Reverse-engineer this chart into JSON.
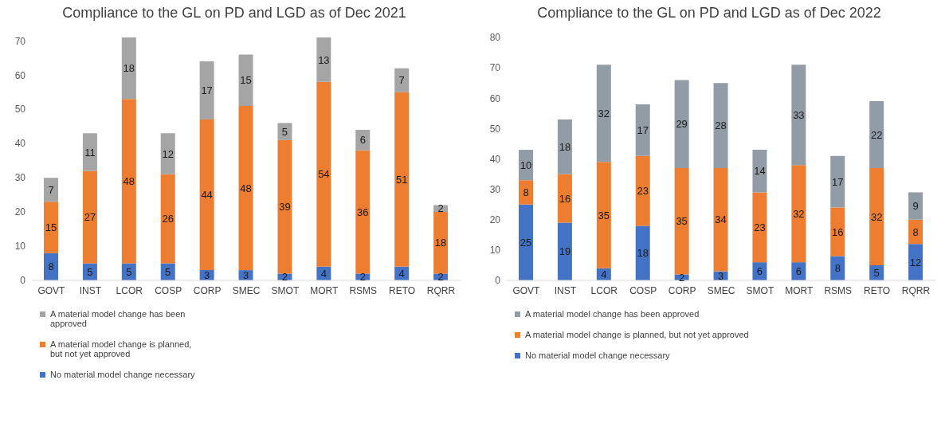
{
  "chart_data": [
    {
      "type": "bar",
      "title": "Compliance to the GL on PD and LGD as of Dec 2021",
      "categories": [
        "GOVT",
        "INST",
        "LCOR",
        "COSP",
        "CORP",
        "SMEC",
        "SMOT",
        "MORT",
        "RSMS",
        "RETO",
        "RQRR"
      ],
      "stacked": true,
      "data_labels": true,
      "grid": false,
      "legend": "bottom",
      "ylim": [
        0,
        71
      ],
      "yticks": [
        0,
        10,
        20,
        30,
        40,
        50,
        60,
        70
      ],
      "series": [
        {
          "name": "No material model change necessary",
          "color": "#4472c4",
          "values": [
            8,
            5,
            5,
            5,
            3,
            3,
            2,
            4,
            2,
            4,
            2
          ]
        },
        {
          "name": "A material model change is planned, but not yet approved",
          "color": "#ed7d31",
          "values": [
            15,
            27,
            48,
            26,
            44,
            48,
            39,
            54,
            36,
            51,
            18
          ]
        },
        {
          "name": "A material model change has been approved",
          "color": "#a5a5a5",
          "values": [
            7,
            11,
            18,
            12,
            17,
            15,
            5,
            13,
            6,
            7,
            2
          ]
        }
      ]
    },
    {
      "type": "bar",
      "title": "Compliance to the GL on PD and LGD as of Dec 2022",
      "categories": [
        "GOVT",
        "INST",
        "LCOR",
        "COSP",
        "CORP",
        "SMEC",
        "SMOT",
        "MORT",
        "RSMS",
        "RETO",
        "RQRR"
      ],
      "stacked": true,
      "data_labels": true,
      "grid": false,
      "legend": "bottom",
      "ylim": [
        0,
        80
      ],
      "yticks": [
        0,
        10,
        20,
        30,
        40,
        50,
        60,
        70,
        80
      ],
      "series": [
        {
          "name": "No material model change necessary",
          "color": "#4472c4",
          "values": [
            25,
            19,
            4,
            18,
            2,
            3,
            6,
            6,
            8,
            5,
            12
          ]
        },
        {
          "name": "A material model change is planned, but not yet approved",
          "color": "#ed7d31",
          "values": [
            8,
            16,
            35,
            23,
            35,
            34,
            23,
            32,
            16,
            32,
            8
          ]
        },
        {
          "name": "A material model change has been approved",
          "color": "#929ca6",
          "values": [
            10,
            18,
            32,
            17,
            29,
            28,
            14,
            33,
            17,
            22,
            9
          ]
        }
      ]
    }
  ]
}
